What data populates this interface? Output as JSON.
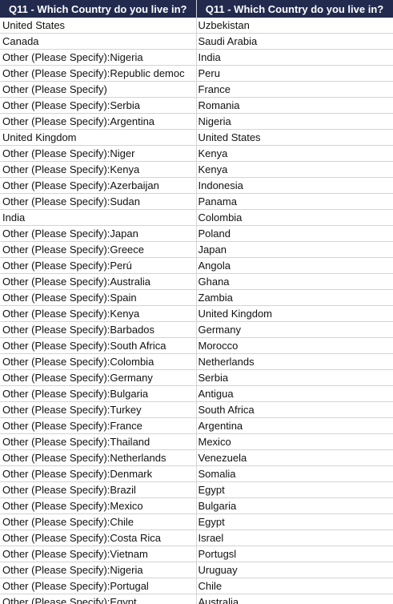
{
  "headers": [
    "Q11 - Which Country do you live in?",
    "Q11 - Which Country do you live in?"
  ],
  "rows": [
    [
      "United States",
      "Uzbekistan"
    ],
    [
      "Canada",
      "Saudi Arabia"
    ],
    [
      "Other (Please Specify):Nigeria",
      "India"
    ],
    [
      "Other (Please Specify):Republic democ",
      "Peru"
    ],
    [
      "Other (Please Specify)",
      "France"
    ],
    [
      "Other (Please Specify):Serbia",
      "Romania"
    ],
    [
      "Other (Please Specify):Argentina",
      "Nigeria"
    ],
    [
      "United Kingdom",
      "United States"
    ],
    [
      "Other (Please Specify):Niger",
      "Kenya"
    ],
    [
      "Other (Please Specify):Kenya",
      "Kenya"
    ],
    [
      "Other (Please Specify):Azerbaijan",
      "Indonesia"
    ],
    [
      "Other (Please Specify):Sudan",
      "Panama"
    ],
    [
      "India",
      "Colombia"
    ],
    [
      "Other (Please Specify):Japan",
      "Poland"
    ],
    [
      "Other (Please Specify):Greece",
      "Japan"
    ],
    [
      "Other (Please Specify):Perú",
      "Angola"
    ],
    [
      "Other (Please Specify):Australia",
      "Ghana"
    ],
    [
      "Other (Please Specify):Spain",
      "Zambia"
    ],
    [
      "Other (Please Specify):Kenya",
      "United Kingdom"
    ],
    [
      "Other (Please Specify):Barbados",
      "Germany"
    ],
    [
      "Other (Please Specify):South Africa",
      "Morocco"
    ],
    [
      "Other (Please Specify):Colombia",
      "Netherlands"
    ],
    [
      "Other (Please Specify):Germany",
      "Serbia"
    ],
    [
      "Other (Please Specify):Bulgaria",
      "Antigua"
    ],
    [
      "Other (Please Specify):Turkey",
      "South Africa"
    ],
    [
      "Other (Please Specify):France",
      "Argentina"
    ],
    [
      "Other (Please Specify):Thailand",
      "Mexico"
    ],
    [
      "Other (Please Specify):Netherlands",
      "Venezuela"
    ],
    [
      "Other (Please Specify):Denmark",
      " Somalia"
    ],
    [
      "Other (Please Specify):Brazil",
      "Egypt"
    ],
    [
      "Other (Please Specify):Mexico",
      "Bulgaria"
    ],
    [
      "Other (Please Specify):Chile",
      "Egypt"
    ],
    [
      "Other (Please Specify):Costa Rica",
      "Israel"
    ],
    [
      "Other (Please Specify):Vietnam",
      "Portugsl"
    ],
    [
      "Other (Please Specify):Nigeria",
      "Uruguay"
    ],
    [
      "Other (Please Specify):Portugal",
      "Chile"
    ],
    [
      "Other (Please Specify):Egypt",
      "Australia"
    ]
  ]
}
